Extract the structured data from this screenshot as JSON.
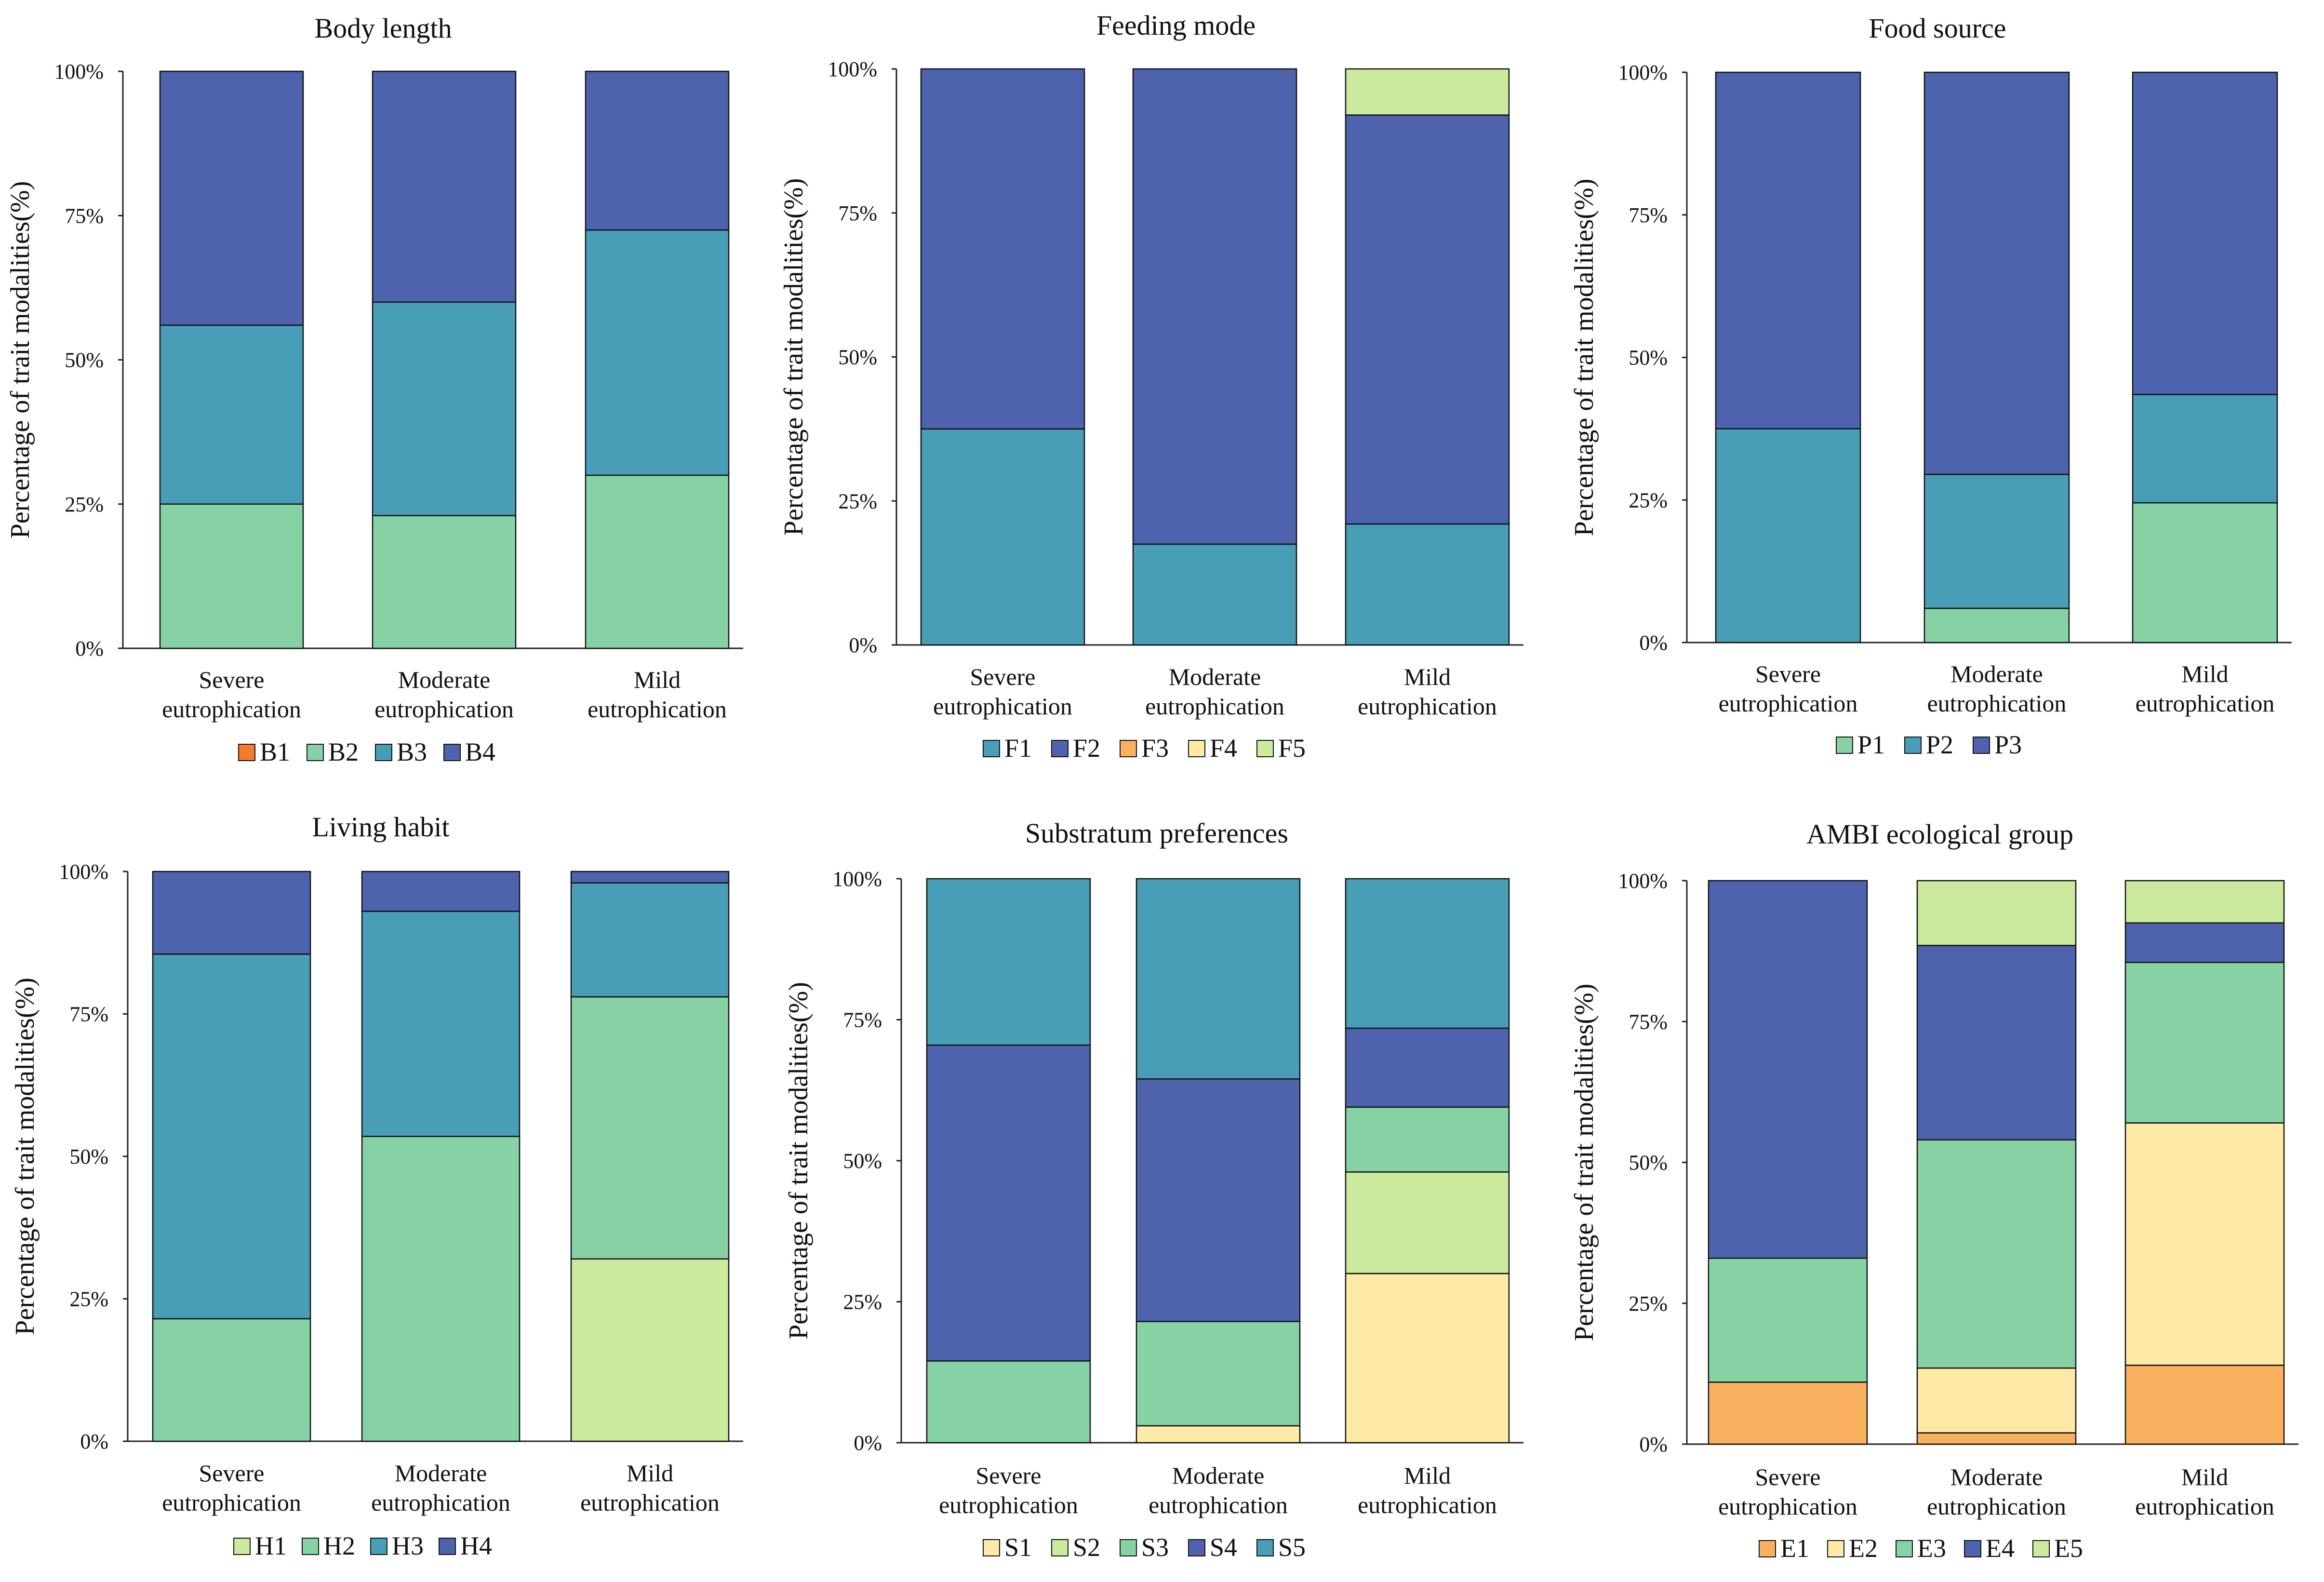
{
  "figure": {
    "y_axis_label": "Percentage of trait modalities(%)",
    "y_tick_labels": [
      "0%",
      "25%",
      "50%",
      "75%",
      "100%"
    ]
  },
  "chart_data": [
    {
      "type": "bar",
      "stacked": true,
      "title": "Body length",
      "categories": [
        [
          "Severe",
          "eutrophication"
        ],
        [
          "Moderate",
          "eutrophication"
        ],
        [
          "Mild",
          "eutrophication"
        ]
      ],
      "ylabel": "Percentage of trait modalities(%)",
      "ylim": [
        0,
        100
      ],
      "legend": "bottom",
      "legend_order": [
        "B1",
        "B2",
        "B3",
        "B4"
      ],
      "series": [
        {
          "name": "B1",
          "color": "#F47B2C",
          "values": [
            0,
            0,
            0
          ]
        },
        {
          "name": "B2",
          "color": "#86D2A4",
          "values": [
            25,
            23,
            30
          ]
        },
        {
          "name": "B3",
          "color": "#489EB6",
          "values": [
            31,
            37,
            42.5
          ]
        },
        {
          "name": "B4",
          "color": "#4E62AE",
          "values": [
            44,
            40,
            27.5
          ]
        }
      ]
    },
    {
      "type": "bar",
      "stacked": true,
      "title": "Feeding mode",
      "categories": [
        [
          "Severe",
          "eutrophication"
        ],
        [
          "Moderate",
          "eutrophication"
        ],
        [
          "Mild",
          "eutrophication"
        ]
      ],
      "ylabel": "Percentage of trait modalities(%)",
      "ylim": [
        0,
        100
      ],
      "legend": "bottom",
      "legend_order": [
        "F1",
        "F2",
        "F3",
        "F4",
        "F5"
      ],
      "series": [
        {
          "name": "F1",
          "color": "#489EB6",
          "values": [
            37.5,
            17.5,
            21
          ]
        },
        {
          "name": "F2",
          "color": "#4E62AE",
          "values": [
            62.5,
            82.5,
            71
          ]
        },
        {
          "name": "F3",
          "color": "#F9B05F",
          "values": [
            0,
            0,
            0
          ]
        },
        {
          "name": "F4",
          "color": "#FEE9A6",
          "values": [
            0,
            0,
            0
          ]
        },
        {
          "name": "F5",
          "color": "#CCEA9E",
          "values": [
            0,
            0,
            8
          ]
        }
      ]
    },
    {
      "type": "bar",
      "stacked": true,
      "title": "Food source",
      "categories": [
        [
          "Severe",
          "eutrophication"
        ],
        [
          "Moderate",
          "eutrophication"
        ],
        [
          "Mild",
          "eutrophication"
        ]
      ],
      "ylabel": "Percentage of trait modalities(%)",
      "ylim": [
        0,
        100
      ],
      "legend": "bottom",
      "legend_order": [
        "P1",
        "P2",
        "P3"
      ],
      "series": [
        {
          "name": "P1",
          "color": "#86D2A4",
          "values": [
            0,
            6,
            24.5
          ]
        },
        {
          "name": "P2",
          "color": "#489EB6",
          "values": [
            37.5,
            23.5,
            19
          ]
        },
        {
          "name": "P3",
          "color": "#4E62AE",
          "values": [
            62.5,
            70.5,
            56.5
          ]
        }
      ]
    },
    {
      "type": "bar",
      "stacked": true,
      "title": "Living habit",
      "categories": [
        [
          "Severe",
          "eutrophication"
        ],
        [
          "Moderate",
          "eutrophication"
        ],
        [
          "Mild",
          "eutrophication"
        ]
      ],
      "ylabel": "Percentage of trait modalities(%)",
      "ylim": [
        0,
        100
      ],
      "legend": "bottom",
      "legend_order": [
        "H1",
        "H2",
        "H3",
        "H4"
      ],
      "series": [
        {
          "name": "H1",
          "color": "#CCEA9E",
          "values": [
            0,
            0,
            32
          ]
        },
        {
          "name": "H2",
          "color": "#86D2A4",
          "values": [
            21.5,
            53.5,
            46
          ]
        },
        {
          "name": "H3",
          "color": "#489EB6",
          "values": [
            64,
            39.5,
            20
          ]
        },
        {
          "name": "H4",
          "color": "#4E62AE",
          "values": [
            14.5,
            7,
            2
          ]
        }
      ]
    },
    {
      "type": "bar",
      "stacked": true,
      "title": "Substratum preferences",
      "categories": [
        [
          "Severe",
          "eutrophication"
        ],
        [
          "Moderate",
          "eutrophication"
        ],
        [
          "Mild",
          "eutrophication"
        ]
      ],
      "ylabel": "Percentage of trait modalities(%)",
      "ylim": [
        0,
        100
      ],
      "legend": "bottom",
      "legend_order": [
        "S1",
        "S2",
        "S3",
        "S4",
        "S5"
      ],
      "series": [
        {
          "name": "S1",
          "color": "#FEE9A6",
          "values": [
            0,
            3,
            30
          ]
        },
        {
          "name": "S2",
          "color": "#CCEA9E",
          "values": [
            0,
            0,
            18
          ]
        },
        {
          "name": "S3",
          "color": "#86D2A4",
          "values": [
            14.5,
            18.5,
            11.5
          ]
        },
        {
          "name": "S4",
          "color": "#4E62AE",
          "values": [
            56,
            43,
            14
          ]
        },
        {
          "name": "S5",
          "color": "#489EB6",
          "values": [
            29.5,
            35.5,
            26.5
          ]
        }
      ]
    },
    {
      "type": "bar",
      "stacked": true,
      "title": "AMBI ecological group",
      "categories": [
        [
          "Severe",
          "eutrophication"
        ],
        [
          "Moderate",
          "eutrophication"
        ],
        [
          "Mild",
          "eutrophication"
        ]
      ],
      "ylabel": "Percentage of trait modalities(%)",
      "ylim": [
        0,
        100
      ],
      "legend": "bottom",
      "legend_order": [
        "E1",
        "E2",
        "E3",
        "E4",
        "E5"
      ],
      "series": [
        {
          "name": "E1",
          "color": "#F9B05F",
          "values": [
            11,
            2,
            14
          ]
        },
        {
          "name": "E2",
          "color": "#FEE9A6",
          "values": [
            0,
            11.5,
            43
          ]
        },
        {
          "name": "E3",
          "color": "#86D2A4",
          "values": [
            22,
            40.5,
            28.5
          ]
        },
        {
          "name": "E4",
          "color": "#4E62AE",
          "values": [
            67,
            34.5,
            7
          ]
        },
        {
          "name": "E5",
          "color": "#CCEA9E",
          "values": [
            0,
            11.5,
            7.5
          ]
        }
      ]
    }
  ]
}
